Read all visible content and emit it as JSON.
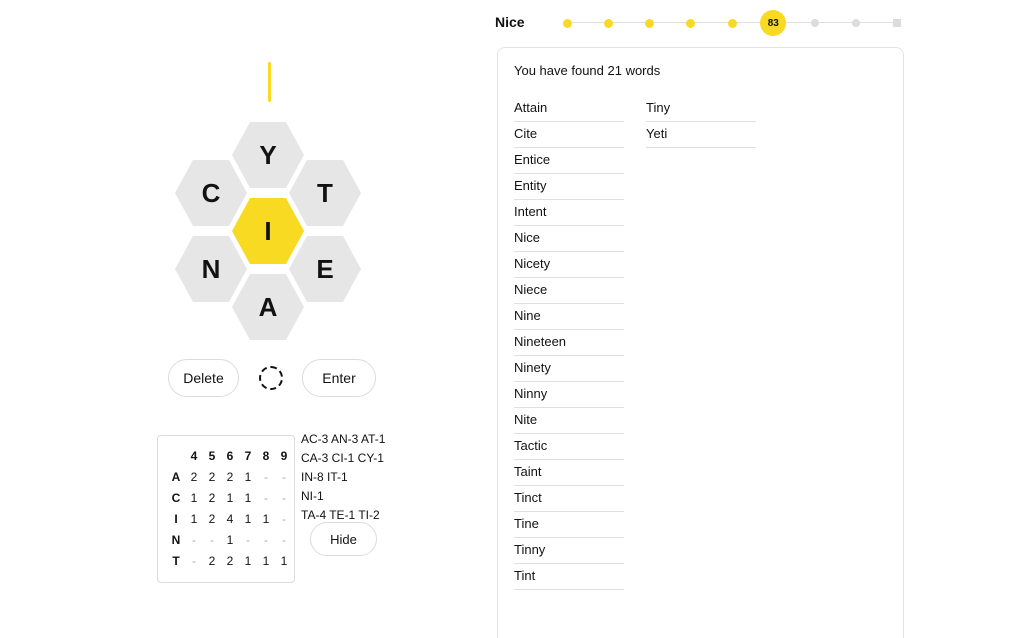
{
  "colors": {
    "accent_yellow": "#f7da21",
    "hex_gray": "#e6e6e6",
    "text": "#121212"
  },
  "hive": {
    "center_letter": "I",
    "outer_letters": [
      "Y",
      "C",
      "T",
      "N",
      "E",
      "A"
    ]
  },
  "controls": {
    "delete_label": "Delete",
    "enter_label": "Enter",
    "hide_label": "Hide",
    "shuffle_icon": "shuffle-icon"
  },
  "stats": {
    "columns": [
      "4",
      "5",
      "6",
      "7",
      "8",
      "9"
    ],
    "rows": [
      {
        "letter": "A",
        "values": [
          "2",
          "2",
          "2",
          "1",
          "-",
          "-"
        ]
      },
      {
        "letter": "C",
        "values": [
          "1",
          "2",
          "1",
          "1",
          "-",
          "-"
        ]
      },
      {
        "letter": "I",
        "values": [
          "1",
          "2",
          "4",
          "1",
          "1",
          "-"
        ]
      },
      {
        "letter": "N",
        "values": [
          "-",
          "-",
          "1",
          "-",
          "-",
          "-"
        ]
      },
      {
        "letter": "T",
        "values": [
          "-",
          "2",
          "2",
          "1",
          "1",
          "1"
        ]
      }
    ],
    "two_letter_lines": [
      "AC-3 AN-3 AT-1",
      "CA-3 CI-1 CY-1",
      "IN-8 IT-1",
      "NI-1",
      "TA-4 TE-1 TI-2"
    ]
  },
  "progress": {
    "rank_label": "Nice",
    "score": "83",
    "total_steps": 9,
    "completed_steps": 5,
    "current_step": 6
  },
  "word_panel": {
    "found_text": "You have found 21 words",
    "column1": [
      "Attain",
      "Cite",
      "Entice",
      "Entity",
      "Intent",
      "Nice",
      "Nicety",
      "Niece",
      "Nine",
      "Nineteen",
      "Ninety",
      "Ninny",
      "Nite",
      "Tactic",
      "Taint",
      "Tinct",
      "Tine",
      "Tinny",
      "Tint"
    ],
    "column2": [
      "Tiny",
      "Yeti"
    ]
  }
}
